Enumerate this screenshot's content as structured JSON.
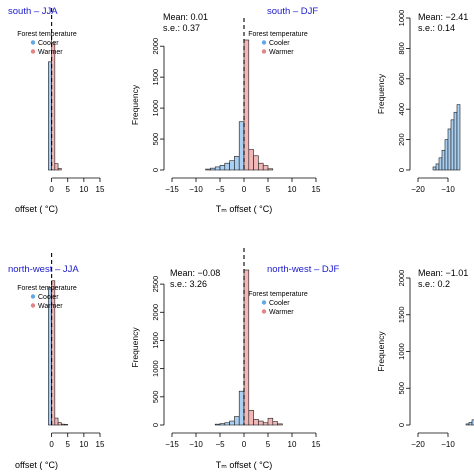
{
  "legend_title": "Forest temperature",
  "legend_items": [
    {
      "name": "Cooler",
      "color": "#64a9e6"
    },
    {
      "name": "Warmer",
      "color": "#e38585"
    }
  ],
  "colors": {
    "cooler_fill": "#a9d0f2",
    "warmer_fill": "#f2b8b8",
    "bar_stroke": "#1a1a1a",
    "region_title": "#1a1acc"
  },
  "chart_data": [
    {
      "type": "bar",
      "region_label": "south – JJA",
      "xlabel": "offset ( °C)",
      "ylabel": "",
      "xlim": [
        -16,
        15
      ],
      "ylim": [
        0,
        2200
      ],
      "xticks": [
        "0",
        "5",
        "10",
        "15"
      ],
      "yticks": [],
      "bin_width": 1,
      "bins": [
        {
          "x0": -1,
          "value": 1700,
          "group": "cooler"
        },
        {
          "x0": 0,
          "value": 2000,
          "group": "warmer"
        },
        {
          "x0": 1,
          "value": 100,
          "group": "warmer"
        },
        {
          "x0": 2,
          "value": 25,
          "group": "warmer"
        }
      ]
    },
    {
      "type": "bar",
      "region_label": "south – DJF",
      "mean_label": "Mean: 0.01",
      "se_label": "s.e.: 0.37",
      "xlabel": "Tₘ offset ( °C)",
      "ylabel": "Frequency",
      "xlim": [
        -15,
        15
      ],
      "ylim": [
        0,
        2100
      ],
      "xticks": [
        "−15",
        "−10",
        "−5",
        "0",
        "5",
        "10",
        "15"
      ],
      "yticks": [
        "0",
        "500",
        "1000",
        "1500",
        "2000"
      ],
      "bin_width": 1,
      "bins": [
        {
          "x0": -8,
          "value": 15,
          "group": "cooler"
        },
        {
          "x0": -7,
          "value": 30,
          "group": "cooler"
        },
        {
          "x0": -6,
          "value": 50,
          "group": "cooler"
        },
        {
          "x0": -5,
          "value": 75,
          "group": "cooler"
        },
        {
          "x0": -4,
          "value": 110,
          "group": "cooler"
        },
        {
          "x0": -3,
          "value": 150,
          "group": "cooler"
        },
        {
          "x0": -2,
          "value": 220,
          "group": "cooler"
        },
        {
          "x0": -1,
          "value": 780,
          "group": "cooler"
        },
        {
          "x0": 0,
          "value": 2100,
          "group": "warmer"
        },
        {
          "x0": 1,
          "value": 330,
          "group": "warmer"
        },
        {
          "x0": 2,
          "value": 230,
          "group": "warmer"
        },
        {
          "x0": 3,
          "value": 110,
          "group": "warmer"
        },
        {
          "x0": 4,
          "value": 70,
          "group": "warmer"
        },
        {
          "x0": 5,
          "value": 20,
          "group": "warmer"
        }
      ]
    },
    {
      "type": "bar",
      "region_label": "",
      "mean_label": "Mean: −2.41",
      "se_label": "s.e.: 0.14",
      "xlabel": "",
      "ylabel": "Frequency",
      "xlim": [
        -20,
        0
      ],
      "ylim": [
        0,
        1000
      ],
      "xticks": [
        "−20",
        "−10"
      ],
      "yticks": [
        "0",
        "200",
        "400",
        "600",
        "800",
        "1000"
      ],
      "bin_width": 1,
      "bins": [
        {
          "x0": -15,
          "value": 20,
          "group": "cooler"
        },
        {
          "x0": -14,
          "value": 40,
          "group": "cooler"
        },
        {
          "x0": -13,
          "value": 80,
          "group": "cooler"
        },
        {
          "x0": -12,
          "value": 130,
          "group": "cooler"
        },
        {
          "x0": -11,
          "value": 200,
          "group": "cooler"
        },
        {
          "x0": -10,
          "value": 270,
          "group": "cooler"
        },
        {
          "x0": -9,
          "value": 330,
          "group": "cooler"
        },
        {
          "x0": -8,
          "value": 380,
          "group": "cooler"
        },
        {
          "x0": -7,
          "value": 430,
          "group": "cooler"
        }
      ]
    },
    {
      "type": "bar",
      "region_label": "north-west – JJA",
      "xlabel": "offset ( °C)",
      "ylabel": "",
      "xlim": [
        -16,
        15
      ],
      "ylim": [
        0,
        2600
      ],
      "xticks": [
        "0",
        "5",
        "10",
        "15"
      ],
      "yticks": [],
      "bin_width": 1,
      "bins": [
        {
          "x0": -1,
          "value": 2380,
          "group": "cooler"
        },
        {
          "x0": 0,
          "value": 2500,
          "group": "warmer"
        },
        {
          "x0": 1,
          "value": 120,
          "group": "warmer"
        },
        {
          "x0": 2,
          "value": 40,
          "group": "warmer"
        },
        {
          "x0": 3,
          "value": 15,
          "group": "warmer"
        },
        {
          "x0": 4,
          "value": 10,
          "group": "warmer"
        }
      ]
    },
    {
      "type": "bar",
      "region_label": "north-west – DJF",
      "mean_label": "Mean: −0.08",
      "se_label": "s.e.: 3.26",
      "xlabel": "Tₘ offset ( °C)",
      "ylabel": "Frequency",
      "xlim": [
        -15,
        15
      ],
      "ylim": [
        0,
        2750
      ],
      "xticks": [
        "−15",
        "−10",
        "−5",
        "0",
        "5",
        "10",
        "15"
      ],
      "yticks": [
        "0",
        "500",
        "1000",
        "1500",
        "2000",
        "2500"
      ],
      "bin_width": 1,
      "bins": [
        {
          "x0": -6,
          "value": 15,
          "group": "cooler"
        },
        {
          "x0": -5,
          "value": 25,
          "group": "cooler"
        },
        {
          "x0": -4,
          "value": 40,
          "group": "cooler"
        },
        {
          "x0": -3,
          "value": 70,
          "group": "cooler"
        },
        {
          "x0": -2,
          "value": 150,
          "group": "cooler"
        },
        {
          "x0": -1,
          "value": 600,
          "group": "cooler"
        },
        {
          "x0": 0,
          "value": 2750,
          "group": "warmer"
        },
        {
          "x0": 1,
          "value": 260,
          "group": "warmer"
        },
        {
          "x0": 2,
          "value": 100,
          "group": "warmer"
        },
        {
          "x0": 3,
          "value": 70,
          "group": "warmer"
        },
        {
          "x0": 4,
          "value": 40,
          "group": "warmer"
        },
        {
          "x0": 5,
          "value": 120,
          "group": "warmer"
        },
        {
          "x0": 6,
          "value": 60,
          "group": "warmer"
        },
        {
          "x0": 7,
          "value": 20,
          "group": "warmer"
        }
      ]
    },
    {
      "type": "bar",
      "region_label": "",
      "mean_label": "Mean: −1.01",
      "se_label": "s.e.: 0.2",
      "xlabel": "",
      "ylabel": "Frequency",
      "xlim": [
        -20,
        0
      ],
      "ylim": [
        0,
        2000
      ],
      "xticks": [
        "−20",
        "−10"
      ],
      "yticks": [
        "0",
        "500",
        "1000",
        "1500",
        "2000"
      ],
      "bin_width": 1,
      "bins": [
        {
          "x0": -4,
          "value": 15,
          "group": "cooler"
        },
        {
          "x0": -3,
          "value": 35,
          "group": "cooler"
        },
        {
          "x0": -2,
          "value": 70,
          "group": "cooler"
        },
        {
          "x0": -1,
          "value": 120,
          "group": "cooler"
        }
      ]
    }
  ]
}
